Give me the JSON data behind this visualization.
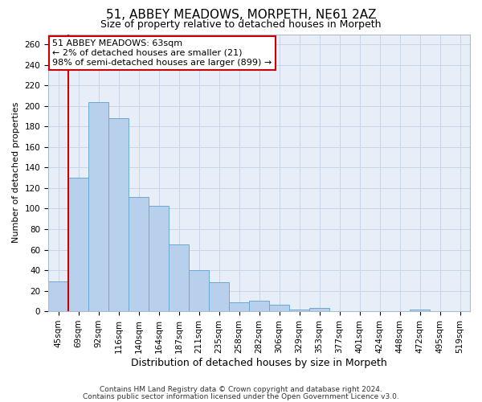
{
  "title": "51, ABBEY MEADOWS, MORPETH, NE61 2AZ",
  "subtitle": "Size of property relative to detached houses in Morpeth",
  "xlabel": "Distribution of detached houses by size in Morpeth",
  "ylabel": "Number of detached properties",
  "categories": [
    "45sqm",
    "69sqm",
    "92sqm",
    "116sqm",
    "140sqm",
    "164sqm",
    "187sqm",
    "211sqm",
    "235sqm",
    "258sqm",
    "282sqm",
    "306sqm",
    "329sqm",
    "353sqm",
    "377sqm",
    "401sqm",
    "424sqm",
    "448sqm",
    "472sqm",
    "495sqm",
    "519sqm"
  ],
  "values": [
    29,
    130,
    204,
    188,
    111,
    103,
    65,
    40,
    28,
    9,
    10,
    6,
    2,
    3,
    0,
    0,
    0,
    0,
    2,
    0,
    0
  ],
  "bar_color": "#b8d0eb",
  "bar_edge_color": "#6aaad4",
  "annotation_text": "51 ABBEY MEADOWS: 63sqm\n← 2% of detached houses are smaller (21)\n98% of semi-detached houses are larger (899) →",
  "annotation_box_edge_color": "#cc0000",
  "vline_color": "#cc0000",
  "vline_x": 0.5,
  "ylim": [
    0,
    270
  ],
  "yticks": [
    0,
    20,
    40,
    60,
    80,
    100,
    120,
    140,
    160,
    180,
    200,
    220,
    240,
    260
  ],
  "grid_color": "#c8d4e8",
  "background_color": "#e8eef8",
  "footer_line1": "Contains HM Land Registry data © Crown copyright and database right 2024.",
  "footer_line2": "Contains public sector information licensed under the Open Government Licence v3.0.",
  "title_fontsize": 11,
  "subtitle_fontsize": 9,
  "xlabel_fontsize": 9,
  "ylabel_fontsize": 8,
  "tick_fontsize": 7.5,
  "annotation_fontsize": 8,
  "footer_fontsize": 6.5
}
